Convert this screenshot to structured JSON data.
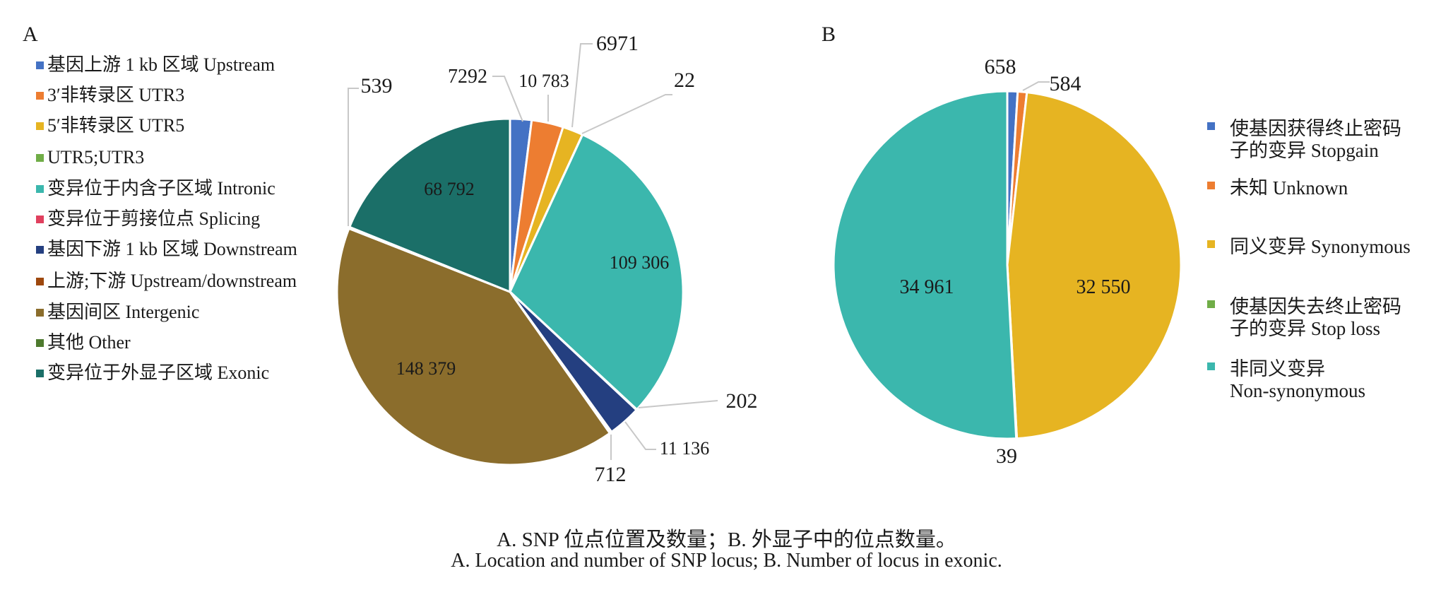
{
  "chart_data": [
    {
      "type": "pie",
      "panel": "A",
      "title": "",
      "start": "top",
      "direction": "clockwise",
      "slices": [
        {
          "label": "基因上游 1 kb 区域 Upstream",
          "value": 7292,
          "value_label": "7292",
          "color": "#4472c4"
        },
        {
          "label": "3′非转录区 UTR3",
          "value": 10783,
          "value_label": "10 783",
          "color": "#ed7d31"
        },
        {
          "label": "5′非转录区 UTR5",
          "value": 6971,
          "value_label": "6971",
          "color": "#e6b422"
        },
        {
          "label": "UTR5;UTR3",
          "value": 22,
          "value_label": "22",
          "color": "#70ad47"
        },
        {
          "label": "变异位于内含子区域 Intronic",
          "value": 109306,
          "value_label": "109 306",
          "color": "#3bb7ad"
        },
        {
          "label": "变异位于剪接位点 Splicing",
          "value": 202,
          "value_label": "202",
          "color": "#e0405e"
        },
        {
          "label": "基因下游 1 kb 区域 Downstream",
          "value": 11136,
          "value_label": "11 136",
          "color": "#243f80"
        },
        {
          "label": "上游;下游 Upstream/downstream",
          "value": 712,
          "value_label": "712",
          "color": "#9e480e"
        },
        {
          "label": "基因间区 Intergenic",
          "value": 148379,
          "value_label": "148 379",
          "color": "#8b6d2c"
        },
        {
          "label": "其他 Other",
          "value": 539,
          "value_label": "539",
          "color": "#4e7a2e"
        },
        {
          "label": "变异位于外显子区域 Exonic",
          "value": 68792,
          "value_label": "68 792",
          "color": "#1b6f68"
        }
      ],
      "legend_position": "left"
    },
    {
      "type": "pie",
      "panel": "B",
      "title": "",
      "start": "top",
      "direction": "clockwise",
      "slices": [
        {
          "label_lines": [
            "使基因获得终止密码",
            "子的变异 Stopgain"
          ],
          "value": 658,
          "value_label": "658",
          "color": "#4472c4"
        },
        {
          "label_lines": [
            "未知 Unknown"
          ],
          "value": 584,
          "value_label": "584",
          "color": "#ed7d31"
        },
        {
          "label_lines": [
            "同义变异 Synonymous"
          ],
          "value": 32550,
          "value_label": "32 550",
          "color": "#e6b422"
        },
        {
          "label_lines": [
            "使基因失去终止密码",
            "子的变异 Stop loss"
          ],
          "value": 39,
          "value_label": "39",
          "color": "#70ad47"
        },
        {
          "label_lines": [
            "非同义变异",
            "Non-synonymous"
          ],
          "value": 34961,
          "value_label": "34 961",
          "color": "#3bb7ad"
        }
      ],
      "legend_position": "right"
    }
  ],
  "caption": {
    "zh": "A. SNP 位点位置及数量；B. 外显子中的位点数量。",
    "en": "A. Location and number of SNP locus; B. Number of locus in exonic."
  }
}
